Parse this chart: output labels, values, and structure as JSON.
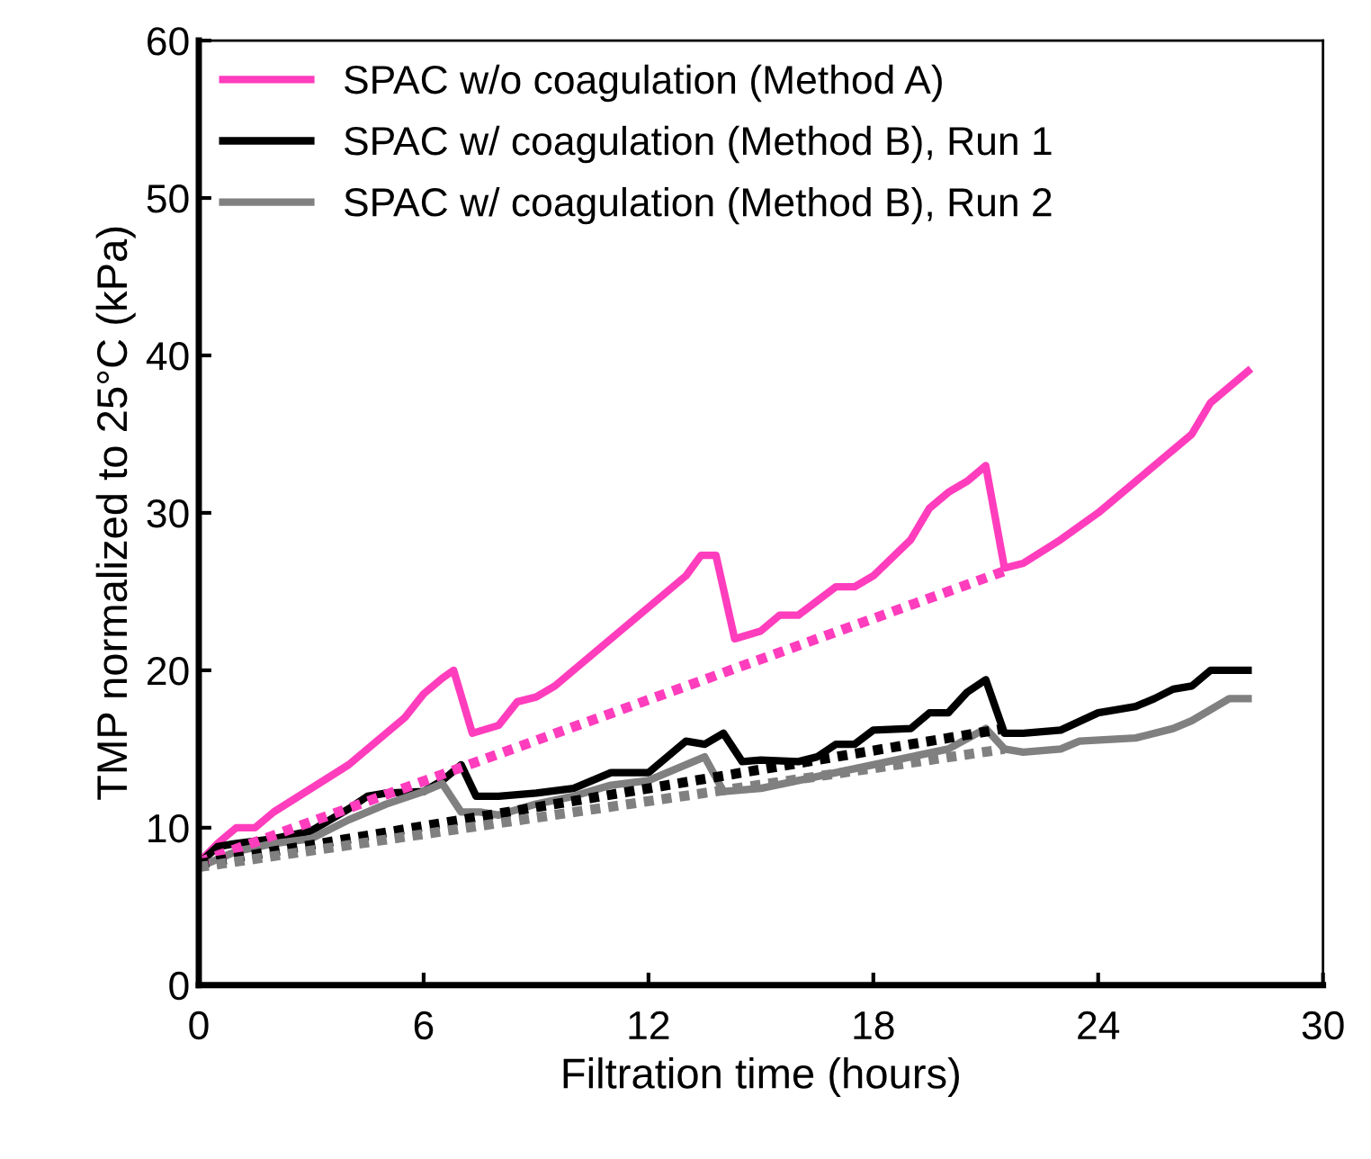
{
  "chart_data": {
    "type": "line",
    "xlabel": "Filtration time (hours)",
    "ylabel": "TMP normalized to 25°C (kPa)",
    "xlim": [
      0,
      30
    ],
    "xticks": [
      0,
      6,
      12,
      18,
      24,
      30
    ],
    "ylim": [
      0,
      60
    ],
    "yticks": [
      0,
      10,
      20,
      30,
      40,
      50,
      60
    ],
    "grid": false,
    "legend": "top left",
    "marker": "none",
    "series": [
      {
        "name": "SPAC w/o coagulation (Method A)",
        "color": "#ff3dbd",
        "line_style": "solid",
        "x": [
          0,
          0.5,
          1,
          1.5,
          2,
          3,
          4,
          5,
          5.5,
          6,
          6.5,
          6.8,
          7.3,
          8,
          8.5,
          9,
          9.5,
          10,
          11,
          12,
          12.5,
          13,
          13.4,
          13.8,
          14.3,
          15,
          15.5,
          16,
          17,
          17.5,
          18,
          19,
          19.5,
          20,
          20.5,
          21,
          21.5,
          22,
          23,
          24,
          25,
          26,
          26.5,
          27,
          28
        ],
        "values": [
          7.8,
          9,
          10,
          10,
          11,
          12.5,
          14,
          16,
          17,
          18.5,
          19.5,
          20,
          16,
          16.5,
          18,
          18.3,
          19,
          20,
          22,
          24,
          25,
          26,
          27.3,
          27.3,
          22,
          22.5,
          23.5,
          23.5,
          25.3,
          25.3,
          26,
          28.3,
          30.3,
          31.3,
          32,
          33,
          26.5,
          26.8,
          28.3,
          30,
          32,
          34,
          35,
          37,
          39
        ]
      },
      {
        "name": "SPAC w/ coagulation (Method B), Run 1",
        "color": "#000000",
        "line_style": "solid",
        "x": [
          0,
          0.5,
          1,
          2,
          3,
          3.5,
          4,
          4.5,
          5,
          6,
          6.5,
          7,
          7.4,
          8,
          9,
          10,
          11,
          12,
          12.5,
          13,
          13.5,
          14,
          14.5,
          15,
          16,
          16.5,
          17,
          17.5,
          18,
          19,
          19.5,
          20,
          20.5,
          21,
          21.5,
          22,
          23,
          24,
          25,
          25.5,
          26,
          26.5,
          27,
          27.5,
          28
        ],
        "values": [
          7.7,
          8.8,
          9,
          9.3,
          9.8,
          10.5,
          11.2,
          12,
          12.2,
          12.3,
          13,
          14,
          12,
          12,
          12.2,
          12.5,
          13.5,
          13.5,
          14.5,
          15.5,
          15.3,
          16,
          14.2,
          14.3,
          14.2,
          14.5,
          15.3,
          15.3,
          16.2,
          16.3,
          17.3,
          17.3,
          18.6,
          19.4,
          16,
          16,
          16.2,
          17.3,
          17.7,
          18.2,
          18.8,
          19,
          20,
          20,
          20
        ]
      },
      {
        "name": "SPAC w/ coagulation (Method B), Run 2",
        "color": "#808080",
        "line_style": "solid",
        "x": [
          0,
          1,
          2,
          3,
          4,
          5,
          6,
          6.5,
          7,
          7.5,
          8,
          9,
          10,
          11,
          12,
          13,
          13.5,
          14,
          15,
          16,
          17,
          18,
          19,
          20,
          21,
          21.5,
          22,
          23,
          23.5,
          25,
          26,
          26.5,
          27,
          27.5,
          28
        ],
        "values": [
          7.5,
          8.5,
          9,
          9.3,
          10.5,
          11.5,
          12.3,
          12.8,
          11,
          11,
          10.8,
          11.5,
          12,
          12.7,
          13,
          14,
          14.5,
          12.3,
          12.5,
          13,
          13.5,
          14,
          14.5,
          15,
          16.3,
          15,
          14.8,
          15,
          15.5,
          15.7,
          16.3,
          16.8,
          17.5,
          18.2,
          18.2
        ]
      },
      {
        "color": "#ff3dbd",
        "line_style": "dotted",
        "x": [
          0,
          21.5
        ],
        "values": [
          7.8,
          26.3
        ]
      },
      {
        "color": "#000000",
        "line_style": "dotted",
        "x": [
          0,
          21.5
        ],
        "values": [
          7.7,
          16.3
        ]
      },
      {
        "color": "#808080",
        "line_style": "dotted",
        "x": [
          0,
          21.5
        ],
        "values": [
          7.5,
          15
        ]
      }
    ]
  }
}
